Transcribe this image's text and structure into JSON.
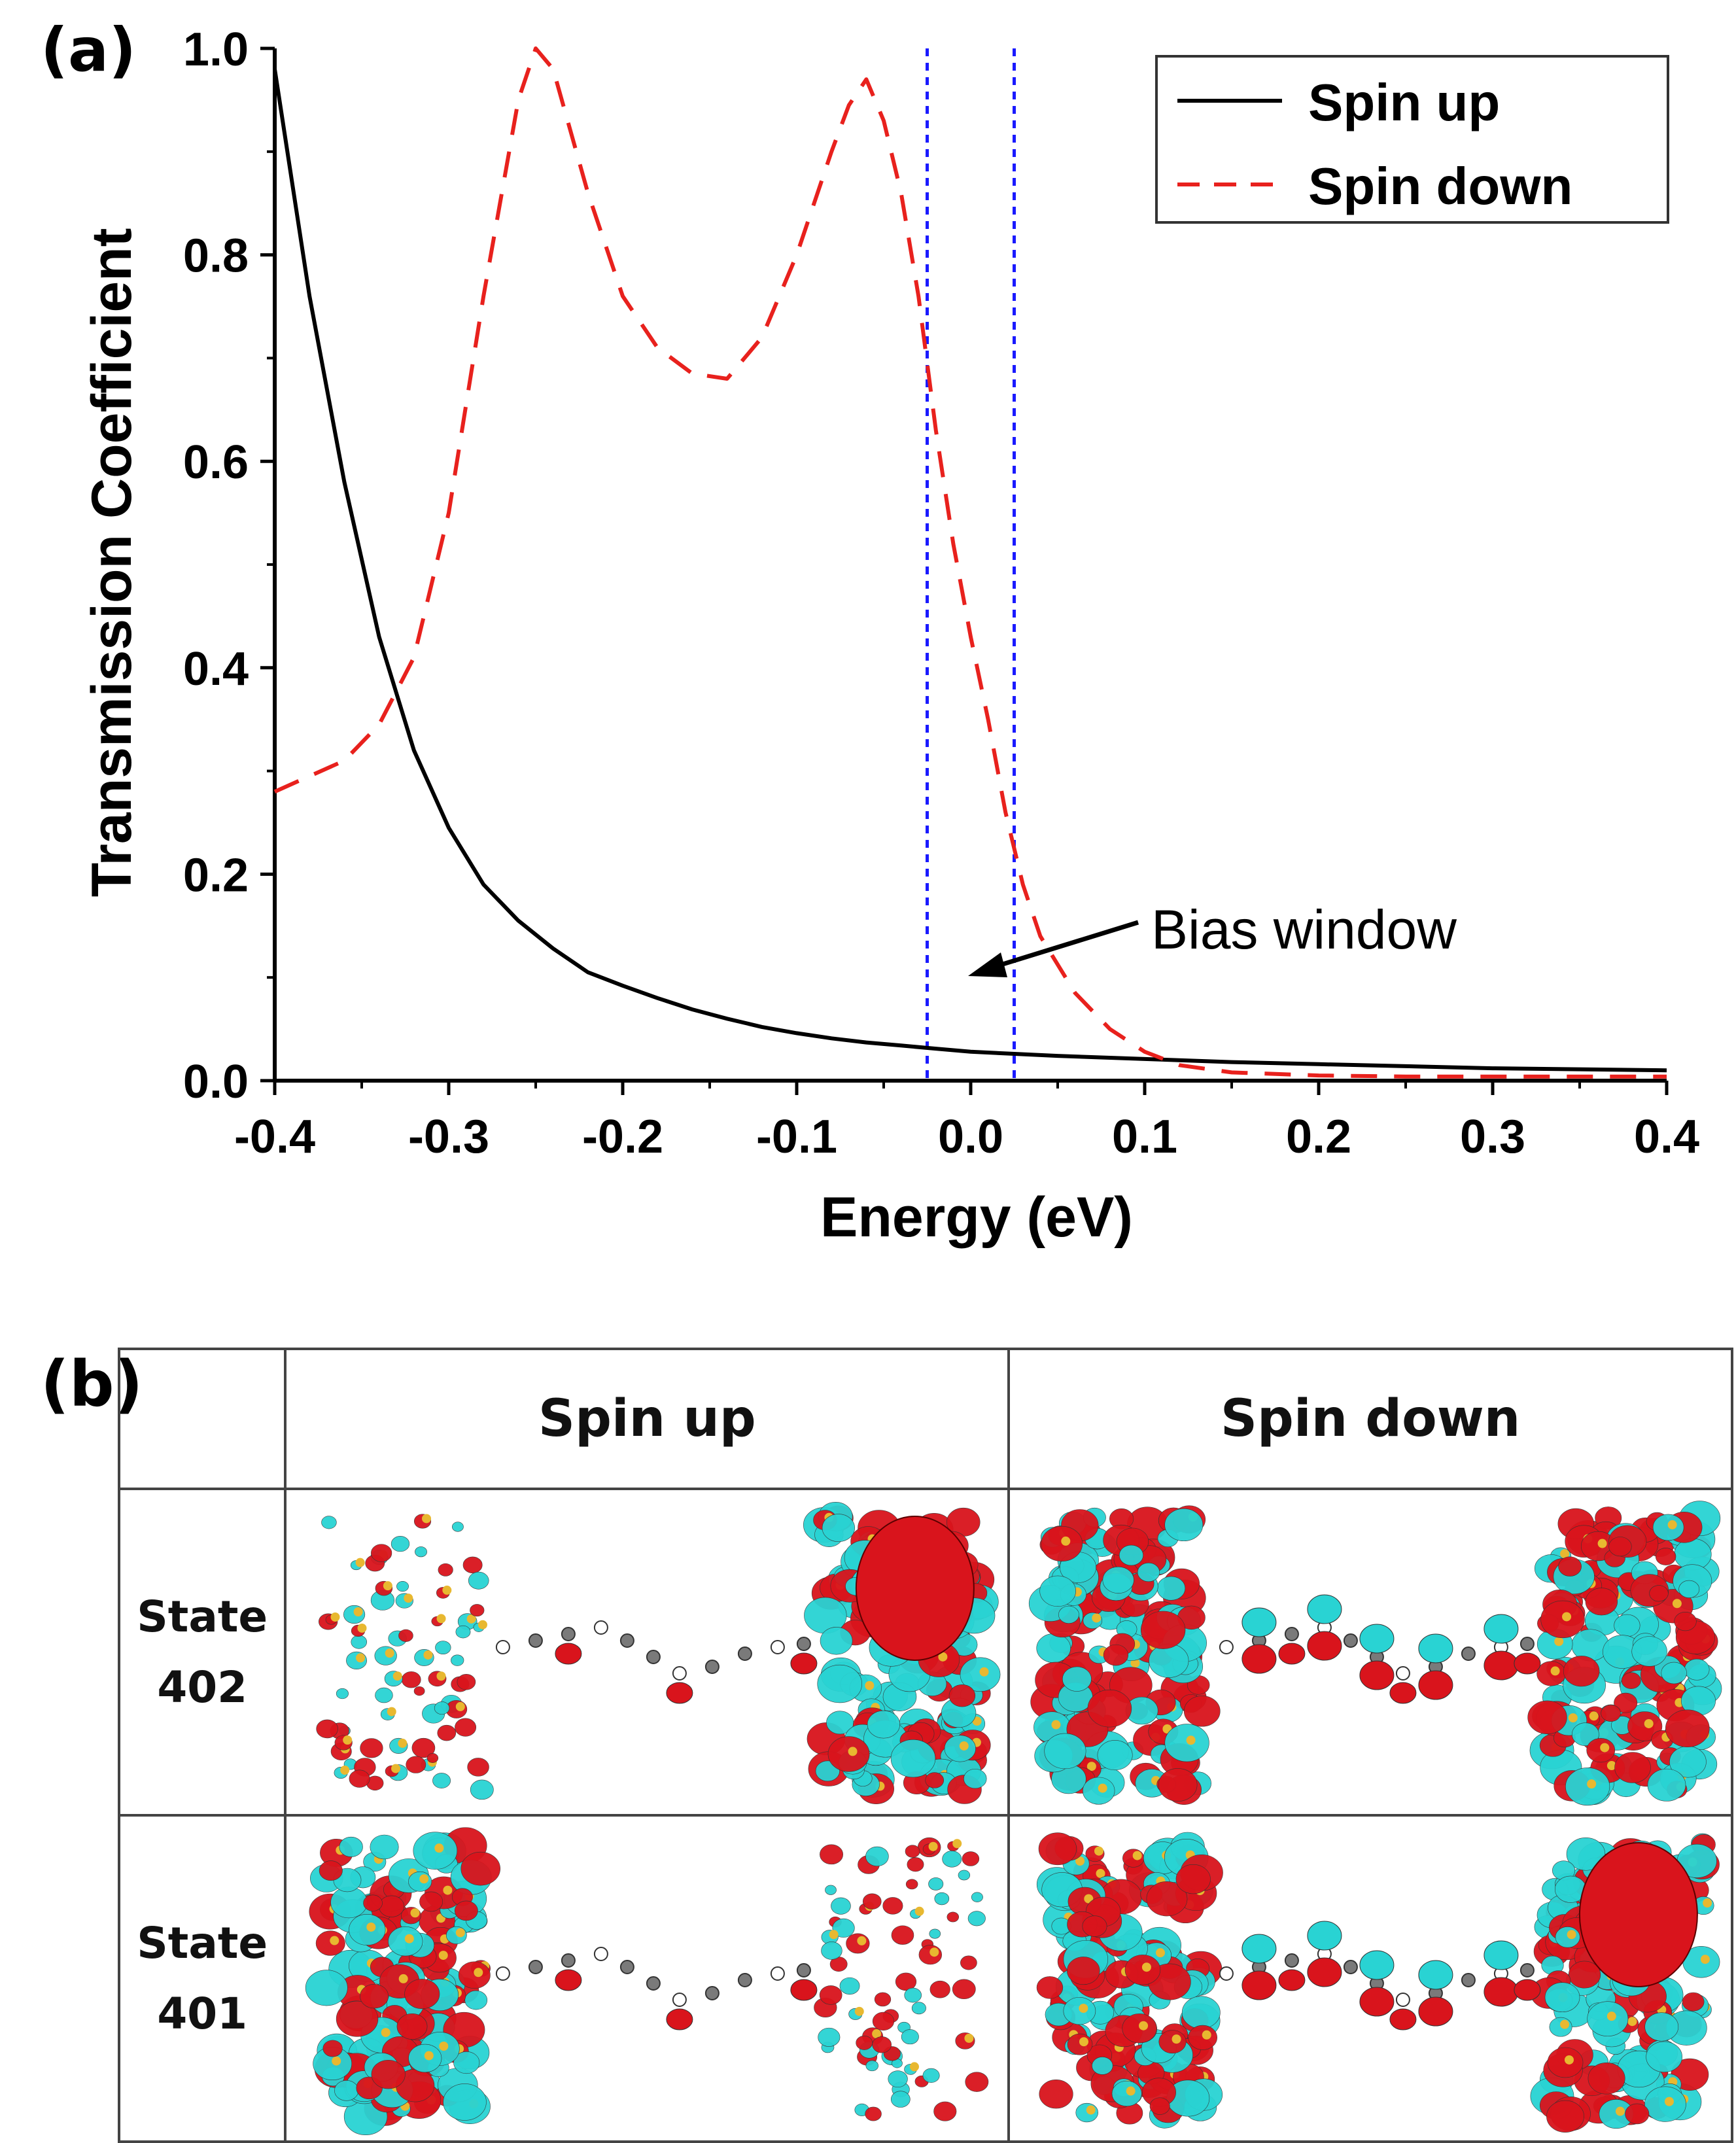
{
  "panel_a": {
    "label": "(a)",
    "annotation": "Bias window",
    "chart_data": {
      "type": "line",
      "xlabel": "Energy (eV)",
      "ylabel": "Transmission Coefficient",
      "xlim": [
        -0.4,
        0.4
      ],
      "ylim": [
        0.0,
        1.0
      ],
      "xticks": [
        "-0.4",
        "-0.3",
        "-0.2",
        "-0.1",
        "0.0",
        "0.1",
        "0.2",
        "0.3",
        "0.4"
      ],
      "yticks": [
        "0.0",
        "0.2",
        "0.4",
        "0.6",
        "0.8",
        "1.0"
      ],
      "legend_position": "top-right",
      "series": [
        {
          "name": "Spin up",
          "color": "#000000",
          "style": "solid",
          "x": [
            -0.4,
            -0.38,
            -0.36,
            -0.34,
            -0.32,
            -0.3,
            -0.28,
            -0.26,
            -0.24,
            -0.22,
            -0.2,
            -0.18,
            -0.16,
            -0.14,
            -0.12,
            -0.1,
            -0.08,
            -0.06,
            -0.04,
            -0.02,
            0.0,
            0.05,
            0.1,
            0.15,
            0.2,
            0.25,
            0.3,
            0.35,
            0.4
          ],
          "y": [
            0.98,
            0.76,
            0.58,
            0.43,
            0.32,
            0.245,
            0.19,
            0.155,
            0.128,
            0.105,
            0.092,
            0.08,
            0.069,
            0.06,
            0.052,
            0.046,
            0.041,
            0.037,
            0.034,
            0.031,
            0.028,
            0.024,
            0.021,
            0.018,
            0.016,
            0.014,
            0.012,
            0.011,
            0.01
          ]
        },
        {
          "name": "Spin down",
          "color": "#e8211d",
          "style": "dashed",
          "x": [
            -0.4,
            -0.36,
            -0.34,
            -0.32,
            -0.3,
            -0.28,
            -0.26,
            -0.25,
            -0.24,
            -0.22,
            -0.2,
            -0.18,
            -0.16,
            -0.14,
            -0.12,
            -0.1,
            -0.08,
            -0.07,
            -0.06,
            -0.05,
            -0.04,
            -0.03,
            -0.02,
            -0.01,
            0.0,
            0.01,
            0.02,
            0.03,
            0.04,
            0.06,
            0.08,
            0.1,
            0.12,
            0.15,
            0.2,
            0.25,
            0.3,
            0.35,
            0.4
          ],
          "y": [
            0.28,
            0.31,
            0.345,
            0.41,
            0.55,
            0.76,
            0.95,
            1.0,
            0.98,
            0.86,
            0.76,
            0.71,
            0.685,
            0.68,
            0.72,
            0.8,
            0.9,
            0.945,
            0.97,
            0.93,
            0.86,
            0.76,
            0.63,
            0.52,
            0.43,
            0.35,
            0.26,
            0.19,
            0.14,
            0.085,
            0.05,
            0.028,
            0.015,
            0.008,
            0.005,
            0.004,
            0.004,
            0.004,
            0.004
          ]
        }
      ],
      "bias_window": [
        -0.025,
        0.025
      ],
      "bias_window_color": "#1a1aff"
    }
  },
  "panel_b": {
    "label": "(b)",
    "columns": [
      "Spin up",
      "Spin down"
    ],
    "rows": [
      {
        "label_line1": "State",
        "label_line2": "402"
      },
      {
        "label_line1": "State",
        "label_line2": "401"
      }
    ],
    "colors": {
      "cyan": "#29d3d3",
      "red": "#d9141c",
      "yellow": "#e8b830",
      "gray": "#7a7a7a"
    }
  }
}
